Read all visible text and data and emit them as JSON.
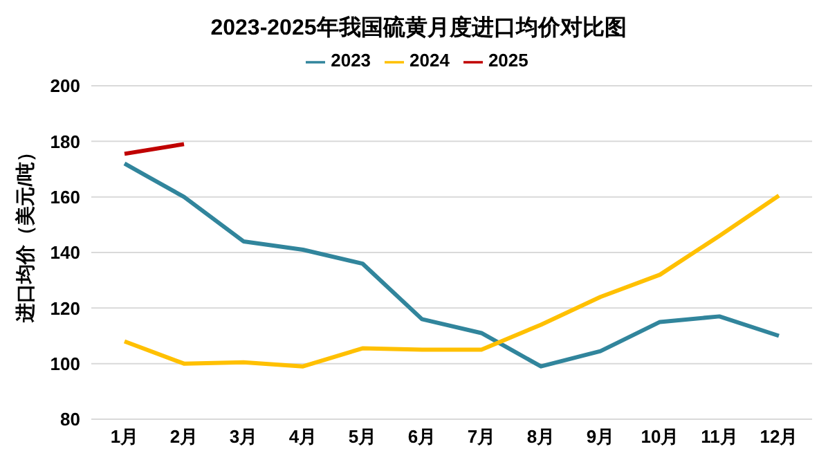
{
  "chart_data": {
    "type": "line",
    "title": "2023-2025年我国硫黄月度进口均价对比图",
    "ylabel": "进口均价（美元/吨）",
    "categories": [
      "1月",
      "2月",
      "3月",
      "4月",
      "5月",
      "6月",
      "7月",
      "8月",
      "9月",
      "10月",
      "11月",
      "12月"
    ],
    "series": [
      {
        "name": "2023",
        "color": "#31859c",
        "values": [
          172,
          160,
          144,
          141,
          136,
          116,
          111,
          99,
          104.5,
          115,
          117,
          110
        ]
      },
      {
        "name": "2024",
        "color": "#ffc000",
        "values": [
          108,
          100,
          100.5,
          99,
          105.5,
          105,
          105,
          114,
          124,
          132,
          146,
          160.5
        ]
      },
      {
        "name": "2025",
        "color": "#c00000",
        "values": [
          175.5,
          179,
          null,
          null,
          null,
          null,
          null,
          null,
          null,
          null,
          null,
          null
        ]
      }
    ],
    "ylim": [
      80,
      200
    ],
    "yticks": [
      80,
      100,
      120,
      140,
      160,
      180,
      200
    ],
    "grid": "y",
    "legend": "top",
    "marker": "none",
    "line_style": "solid"
  }
}
